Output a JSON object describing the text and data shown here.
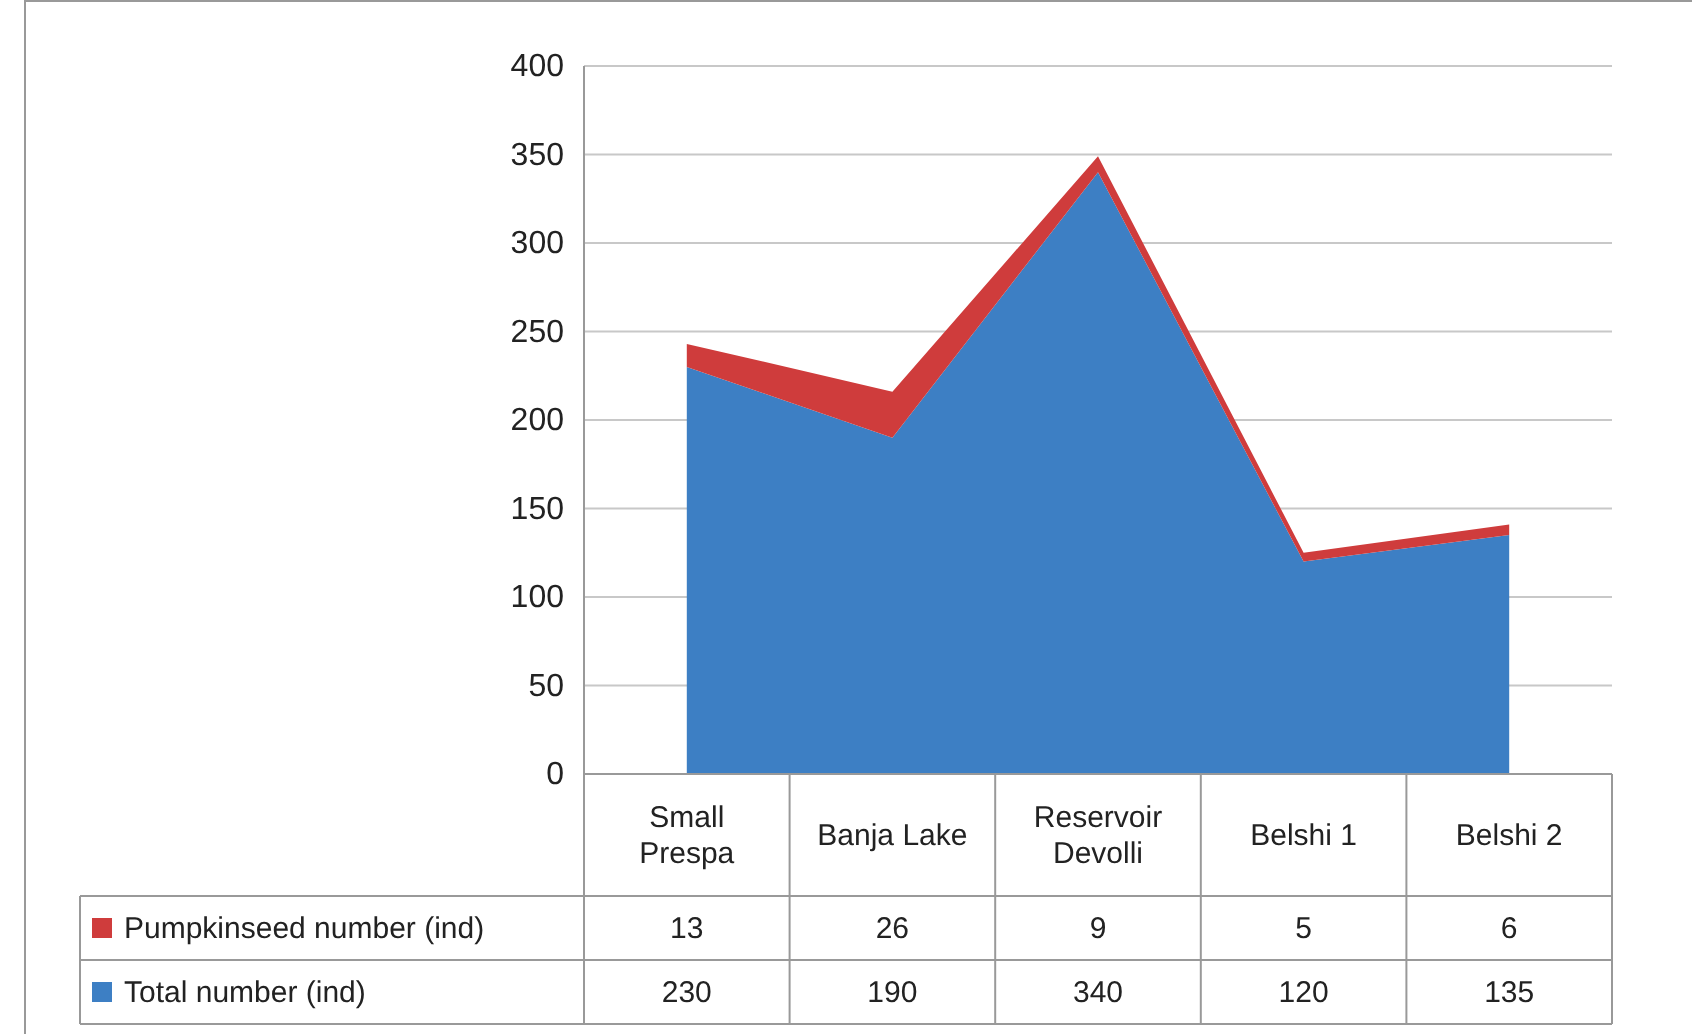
{
  "chart_data": {
    "type": "area",
    "stacked": true,
    "categories": [
      "Small Prespa",
      "Banja Lake",
      "Reservoir Devolli",
      "Belshi 1",
      "Belshi 2"
    ],
    "series": [
      {
        "name": "Total number (ind)",
        "color": "#3d7fc4",
        "values": [
          230,
          190,
          340,
          120,
          135
        ]
      },
      {
        "name": "Pumpkinseed number (ind)",
        "color": "#cf3c3c",
        "values": [
          13,
          26,
          9,
          5,
          6
        ]
      }
    ],
    "ylim": [
      0,
      400
    ],
    "yticks": [
      0,
      50,
      100,
      150,
      200,
      250,
      300,
      350,
      400
    ],
    "grid": "y",
    "data_labels": true,
    "legend": "bottom left"
  }
}
